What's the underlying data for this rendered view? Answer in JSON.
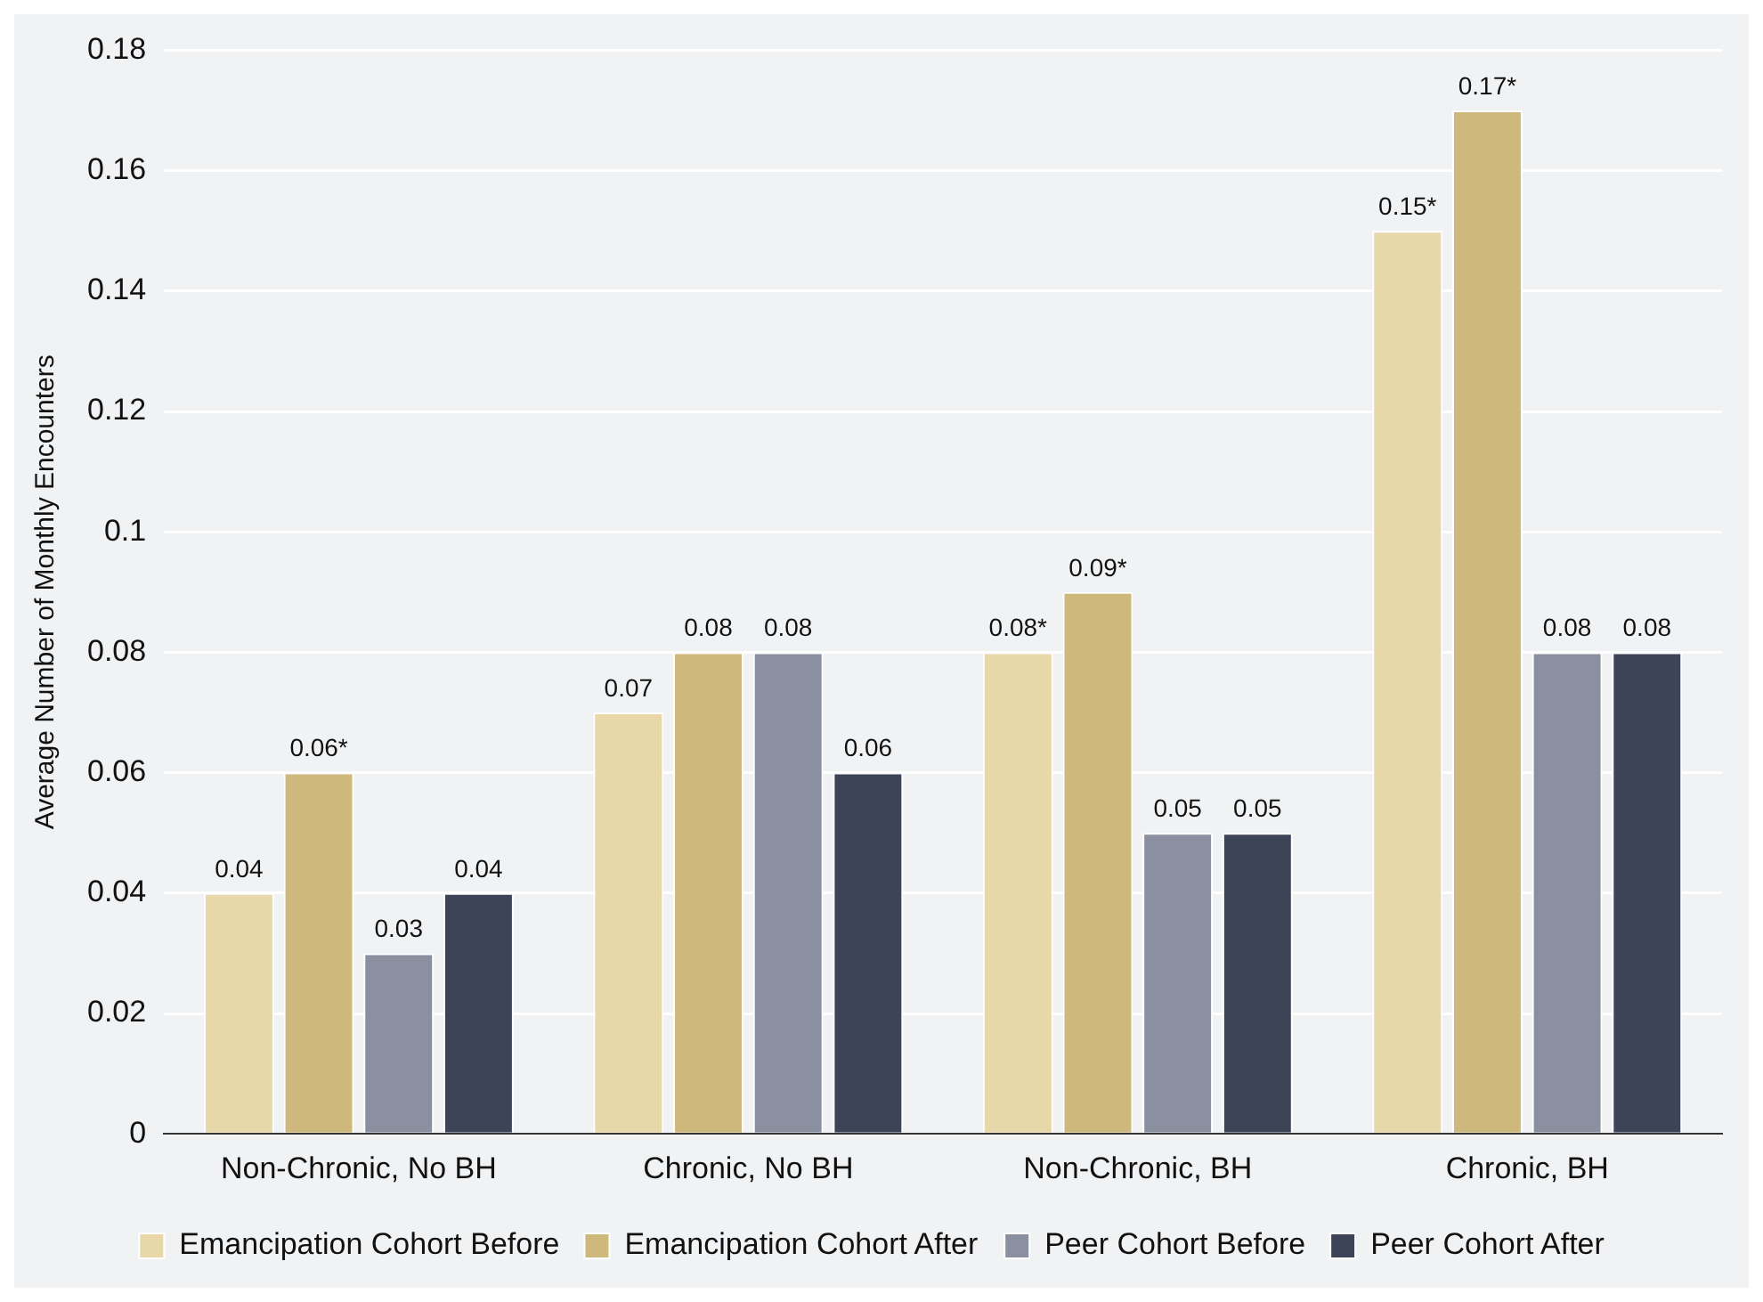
{
  "chart_data": {
    "type": "bar",
    "ylabel": "Average Number of Monthly Encounters",
    "categories": [
      "Non-Chronic, No BH",
      "Chronic, No BH",
      "Non-Chronic, BH",
      "Chronic, BH"
    ],
    "series": [
      {
        "name": "Emancipation Cohort Before",
        "color": "#e8d7a8",
        "values": [
          0.04,
          0.07,
          0.08,
          0.15
        ],
        "value_labels": [
          "0.04",
          "0.07",
          "0.08*",
          "0.15*"
        ]
      },
      {
        "name": "Emancipation Cohort After",
        "color": "#cfb87c",
        "values": [
          0.06,
          0.08,
          0.09,
          0.17
        ],
        "value_labels": [
          "0.06*",
          "0.08",
          "0.09*",
          "0.17*"
        ]
      },
      {
        "name": "Peer Cohort Before",
        "color": "#8b90a0",
        "values": [
          0.03,
          0.08,
          0.05,
          0.08
        ],
        "value_labels": [
          "0.03",
          "0.08",
          "0.05",
          "0.08"
        ]
      },
      {
        "name": "Peer Cohort After",
        "color": "#3e4458",
        "values": [
          0.04,
          0.06,
          0.05,
          0.08
        ],
        "value_labels": [
          "0.04",
          "0.06",
          "0.05",
          "0.08"
        ]
      }
    ],
    "ylim": [
      0,
      0.18
    ],
    "yticks": [
      0,
      0.02,
      0.04,
      0.06,
      0.08,
      0.1,
      0.12,
      0.14,
      0.16,
      0.18
    ],
    "grid": "y",
    "legend": "bottom"
  }
}
